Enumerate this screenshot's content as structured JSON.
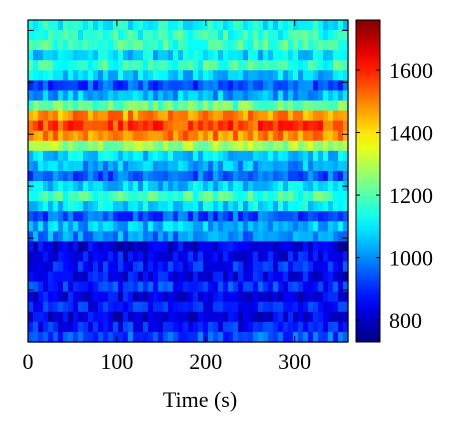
{
  "chart_data": {
    "type": "heatmap",
    "title": "",
    "xlabel": "Time (s)",
    "ylabel": "",
    "xlim": [
      0,
      360
    ],
    "x_ticks": [
      0,
      100,
      200,
      300
    ],
    "x_tick_labels": [
      "0",
      "100",
      "200",
      "300"
    ],
    "y_ticks_unlabeled": true,
    "colorbar": {
      "colormap": "jet",
      "range": [
        730,
        1760
      ],
      "ticks": [
        800,
        1000,
        1200,
        1400,
        1600
      ],
      "tick_labels": [
        "800",
        "1000",
        "1200",
        "1400",
        "1600"
      ]
    },
    "rows_top_to_bottom": [
      {
        "band": 1,
        "mean_value": 1120
      },
      {
        "band": 2,
        "mean_value": 1160
      },
      {
        "band": 3,
        "mean_value": 1180
      },
      {
        "band": 4,
        "mean_value": 1080
      },
      {
        "band": 5,
        "mean_value": 1170
      },
      {
        "band": 6,
        "mean_value": 1070
      },
      {
        "band": 7,
        "mean_value": 940
      },
      {
        "band": 8,
        "mean_value": 1040
      },
      {
        "band": 9,
        "mean_value": 1220
      },
      {
        "band": 10,
        "mean_value": 1480
      },
      {
        "band": 11,
        "mean_value": 1560
      },
      {
        "band": 12,
        "mean_value": 1500
      },
      {
        "band": 13,
        "mean_value": 1280
      },
      {
        "band": 14,
        "mean_value": 1080
      },
      {
        "band": 15,
        "mean_value": 1030
      },
      {
        "band": 16,
        "mean_value": 960
      },
      {
        "band": 17,
        "mean_value": 1070
      },
      {
        "band": 18,
        "mean_value": 1180
      },
      {
        "band": 19,
        "mean_value": 1090
      },
      {
        "band": 20,
        "mean_value": 950
      },
      {
        "band": 21,
        "mean_value": 1040
      },
      {
        "band": 22,
        "mean_value": 1000
      },
      {
        "band": 23,
        "mean_value": 820
      },
      {
        "band": 24,
        "mean_value": 850
      },
      {
        "band": 25,
        "mean_value": 880
      },
      {
        "band": 26,
        "mean_value": 850
      },
      {
        "band": 27,
        "mean_value": 900
      },
      {
        "band": 28,
        "mean_value": 840
      },
      {
        "band": 29,
        "mean_value": 880
      },
      {
        "band": 30,
        "mean_value": 830
      },
      {
        "band": 31,
        "mean_value": 880
      },
      {
        "band": 32,
        "mean_value": 940
      }
    ]
  }
}
